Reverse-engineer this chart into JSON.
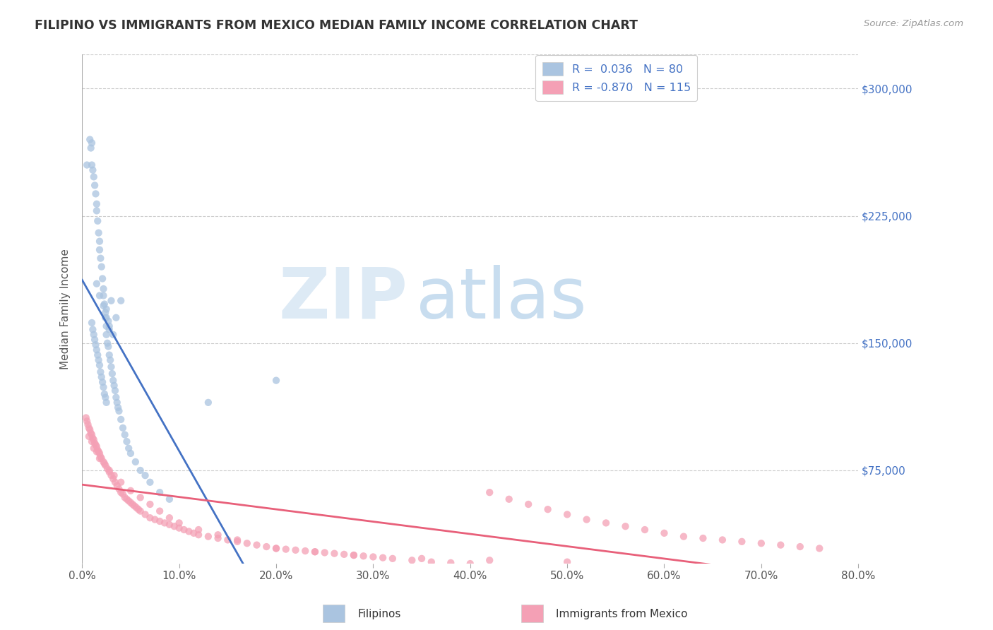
{
  "title": "FILIPINO VS IMMIGRANTS FROM MEXICO MEDIAN FAMILY INCOME CORRELATION CHART",
  "source_text": "Source: ZipAtlas.com",
  "ylabel": "Median Family Income",
  "watermark_zip": "ZIP",
  "watermark_atlas": "atlas",
  "xmin": 0.0,
  "xmax": 0.8,
  "ymin": 20000,
  "ymax": 320000,
  "yticks": [
    75000,
    150000,
    225000,
    300000
  ],
  "ytick_labels": [
    "$75,000",
    "$150,000",
    "$225,000",
    "$300,000"
  ],
  "xticks": [
    0.0,
    0.1,
    0.2,
    0.3,
    0.4,
    0.5,
    0.6,
    0.7,
    0.8
  ],
  "xtick_labels": [
    "0.0%",
    "10.0%",
    "20.0%",
    "30.0%",
    "40.0%",
    "50.0%",
    "60.0%",
    "70.0%",
    "80.0%"
  ],
  "legend_r1": "R =  0.036   N = 80",
  "legend_r2": "R = -0.870   N = 115",
  "legend_label1": "Filipinos",
  "legend_label2": "Immigrants from Mexico",
  "color_blue": "#aac4e0",
  "color_pink": "#f4a0b5",
  "color_blue_dark": "#4472c4",
  "color_pink_dark": "#e8607a",
  "color_blue_line_solid": "#4472c4",
  "color_blue_line_dash": "#7aaed6",
  "color_pink_line": "#e8607a",
  "color_axis_label": "#4472c4",
  "color_title": "#333333",
  "color_source": "#999999",
  "color_watermark_zip": "#ddeaf5",
  "color_watermark_atlas": "#c8ddef",
  "background_color": "#ffffff",
  "grid_color": "#cccccc",
  "filipinos_x": [
    0.005,
    0.008,
    0.009,
    0.01,
    0.01,
    0.011,
    0.012,
    0.013,
    0.014,
    0.015,
    0.015,
    0.016,
    0.017,
    0.018,
    0.018,
    0.019,
    0.02,
    0.021,
    0.022,
    0.022,
    0.023,
    0.024,
    0.024,
    0.025,
    0.025,
    0.026,
    0.027,
    0.028,
    0.029,
    0.03,
    0.031,
    0.032,
    0.033,
    0.034,
    0.035,
    0.036,
    0.037,
    0.038,
    0.04,
    0.042,
    0.044,
    0.046,
    0.048,
    0.05,
    0.055,
    0.06,
    0.065,
    0.07,
    0.08,
    0.09,
    0.01,
    0.011,
    0.012,
    0.013,
    0.014,
    0.015,
    0.016,
    0.017,
    0.018,
    0.019,
    0.02,
    0.021,
    0.022,
    0.023,
    0.024,
    0.025,
    0.025,
    0.027,
    0.028,
    0.03,
    0.035,
    0.04,
    0.015,
    0.018,
    0.022,
    0.025,
    0.028,
    0.032,
    0.13,
    0.2
  ],
  "filipinos_y": [
    255000,
    270000,
    265000,
    268000,
    255000,
    252000,
    248000,
    243000,
    238000,
    232000,
    228000,
    222000,
    215000,
    210000,
    205000,
    200000,
    195000,
    188000,
    182000,
    178000,
    173000,
    168000,
    165000,
    160000,
    155000,
    150000,
    148000,
    143000,
    140000,
    136000,
    132000,
    128000,
    125000,
    122000,
    118000,
    115000,
    112000,
    110000,
    105000,
    100000,
    96000,
    92000,
    88000,
    85000,
    80000,
    75000,
    72000,
    68000,
    62000,
    58000,
    162000,
    158000,
    155000,
    152000,
    149000,
    146000,
    143000,
    140000,
    137000,
    133000,
    130000,
    127000,
    124000,
    120000,
    118000,
    115000,
    170000,
    163000,
    158000,
    175000,
    165000,
    175000,
    185000,
    178000,
    172000,
    165000,
    160000,
    155000,
    115000,
    128000
  ],
  "mexico_x": [
    0.004,
    0.005,
    0.006,
    0.007,
    0.008,
    0.009,
    0.01,
    0.011,
    0.012,
    0.013,
    0.014,
    0.015,
    0.016,
    0.017,
    0.018,
    0.019,
    0.02,
    0.022,
    0.024,
    0.026,
    0.028,
    0.03,
    0.032,
    0.034,
    0.036,
    0.038,
    0.04,
    0.042,
    0.044,
    0.046,
    0.048,
    0.05,
    0.052,
    0.054,
    0.056,
    0.058,
    0.06,
    0.065,
    0.07,
    0.075,
    0.08,
    0.085,
    0.09,
    0.095,
    0.1,
    0.105,
    0.11,
    0.115,
    0.12,
    0.13,
    0.14,
    0.15,
    0.16,
    0.17,
    0.18,
    0.19,
    0.2,
    0.21,
    0.22,
    0.23,
    0.24,
    0.25,
    0.26,
    0.27,
    0.28,
    0.29,
    0.3,
    0.31,
    0.32,
    0.34,
    0.36,
    0.38,
    0.4,
    0.42,
    0.44,
    0.46,
    0.48,
    0.5,
    0.52,
    0.54,
    0.56,
    0.58,
    0.6,
    0.62,
    0.64,
    0.66,
    0.68,
    0.7,
    0.72,
    0.74,
    0.76,
    0.007,
    0.01,
    0.012,
    0.015,
    0.018,
    0.023,
    0.028,
    0.033,
    0.04,
    0.05,
    0.06,
    0.07,
    0.08,
    0.09,
    0.1,
    0.12,
    0.14,
    0.16,
    0.2,
    0.24,
    0.28,
    0.35,
    0.42,
    0.5
  ],
  "mexico_y": [
    106000,
    104000,
    102000,
    100000,
    99000,
    97000,
    96000,
    94000,
    93000,
    91000,
    90000,
    89000,
    87000,
    86000,
    85000,
    83000,
    82000,
    80000,
    78000,
    76000,
    74000,
    72000,
    70000,
    68000,
    66000,
    64000,
    62000,
    61000,
    59000,
    58000,
    57000,
    56000,
    55000,
    54000,
    53000,
    52000,
    51000,
    49000,
    47000,
    46000,
    45000,
    44000,
    43000,
    42000,
    41000,
    40000,
    39000,
    38000,
    37000,
    36000,
    35000,
    34000,
    33000,
    32000,
    31000,
    30000,
    29000,
    28500,
    28000,
    27500,
    27000,
    26500,
    26000,
    25500,
    25000,
    24500,
    24000,
    23500,
    23000,
    22000,
    21000,
    20500,
    20000,
    62000,
    58000,
    55000,
    52000,
    49000,
    46000,
    44000,
    42000,
    40000,
    38000,
    36000,
    35000,
    34000,
    33000,
    32000,
    31000,
    30000,
    29000,
    95000,
    92000,
    88000,
    86000,
    82000,
    79000,
    75000,
    72000,
    68000,
    63000,
    59000,
    55000,
    51000,
    47000,
    44000,
    40000,
    37000,
    34000,
    29000,
    27000,
    25000,
    23000,
    22000,
    21000
  ]
}
